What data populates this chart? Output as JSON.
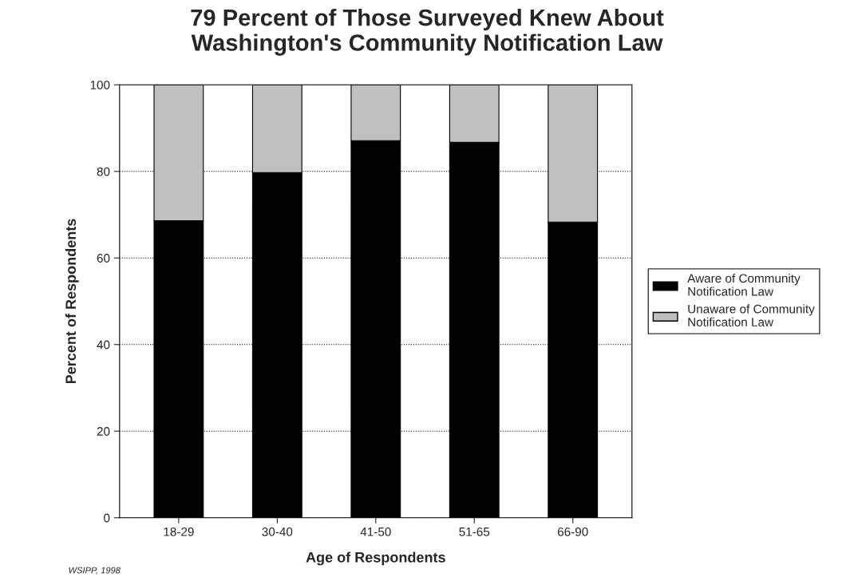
{
  "chart_data": {
    "type": "bar",
    "title": "79 Percent of Those Surveyed Knew About\nWashington's Community Notification Law",
    "xlabel": "Age of Respondents",
    "ylabel": "Percent of Respondents",
    "categories": [
      "18-29",
      "30-40",
      "41-50",
      "51-65",
      "66-90"
    ],
    "series": [
      {
        "name": "Aware of Community\nNotification Law",
        "color": "#000000",
        "values": [
          68.6,
          79.7,
          87.1,
          86.7,
          68.3
        ]
      },
      {
        "name": "Unaware of Community\nNotification Law",
        "color": "#c0c0c0",
        "values": [
          31.4,
          20.3,
          12.9,
          13.3,
          31.7
        ]
      }
    ],
    "stacked": true,
    "ylim": [
      0,
      100
    ],
    "yticks": [
      0,
      20,
      40,
      60,
      80,
      100
    ],
    "grid": "y",
    "legend": "right",
    "line_style": "dotted",
    "annotations": [
      "WSIPP, 1998"
    ]
  }
}
